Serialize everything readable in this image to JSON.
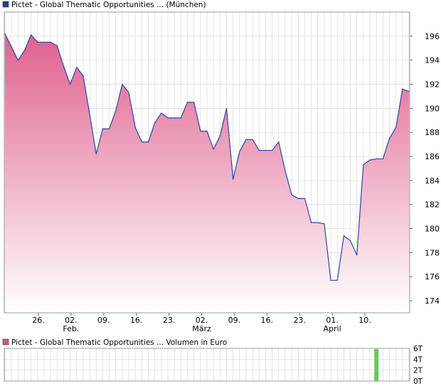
{
  "chart_data": [
    {
      "type": "area",
      "title": "Pictet - Global Thematic Opportunities ... (München)",
      "legend_color": "#1f3f99",
      "line_color": "#2a45a8",
      "fill_top_color": "#e0608f",
      "fill_bottom_color": "#ffffff",
      "ylim": [
        173,
        198
      ],
      "y_ticks": [
        174,
        176,
        178,
        180,
        182,
        184,
        186,
        188,
        190,
        192,
        194,
        196
      ],
      "y_axis_position": "right",
      "grid": true,
      "x_tick_labels": [
        {
          "label": "26.",
          "sub": ""
        },
        {
          "label": "02.",
          "sub": "Feb."
        },
        {
          "label": "09.",
          "sub": ""
        },
        {
          "label": "16.",
          "sub": ""
        },
        {
          "label": "23.",
          "sub": ""
        },
        {
          "label": "02.",
          "sub": "März"
        },
        {
          "label": "09.",
          "sub": ""
        },
        {
          "label": "16.",
          "sub": ""
        },
        {
          "label": "23.",
          "sub": ""
        },
        {
          "label": "01.",
          "sub": "April"
        },
        {
          "label": "10.",
          "sub": ""
        }
      ],
      "values": [
        196.2,
        195.1,
        194.0,
        194.8,
        196.1,
        195.5,
        195.5,
        195.5,
        195.2,
        193.5,
        192.0,
        193.4,
        192.7,
        189.5,
        186.2,
        188.3,
        188.3,
        189.8,
        192.0,
        191.3,
        188.4,
        187.2,
        187.2,
        188.8,
        189.6,
        189.2,
        189.2,
        189.2,
        190.5,
        190.5,
        188.1,
        188.1,
        186.6,
        187.7,
        190.0,
        184.1,
        186.4,
        187.4,
        187.4,
        186.5,
        186.5,
        186.5,
        187.2,
        184.8,
        182.8,
        182.5,
        182.5,
        180.5,
        180.5,
        180.4,
        175.7,
        175.7,
        179.4,
        179.0,
        177.8,
        185.3,
        185.7,
        185.8,
        185.8,
        187.5,
        188.4,
        191.6,
        191.4
      ]
    },
    {
      "type": "bar",
      "title": "Pictet - Global Thematic Opportunities ... Volumen in Euro",
      "legend_color": "#d65a6e",
      "bar_color": "#66cc55",
      "ylim": [
        0,
        6
      ],
      "y_ticks": [
        "0T",
        "2T",
        "4T",
        "6T"
      ],
      "y_axis_position": "right",
      "grid": true,
      "values": [
        0,
        0,
        0,
        0,
        0,
        0,
        0,
        0,
        0,
        0,
        0,
        0,
        0,
        0,
        0,
        0,
        0,
        0,
        0,
        0,
        0,
        0,
        0,
        0,
        0,
        0,
        0,
        0,
        0,
        0,
        0,
        0,
        0,
        0,
        0,
        0,
        0,
        0,
        0,
        0,
        0,
        0,
        0,
        0,
        0,
        0,
        0,
        0,
        0,
        0,
        0,
        0,
        0,
        0,
        0,
        0,
        0,
        6,
        0,
        0,
        0,
        0,
        0
      ]
    }
  ]
}
